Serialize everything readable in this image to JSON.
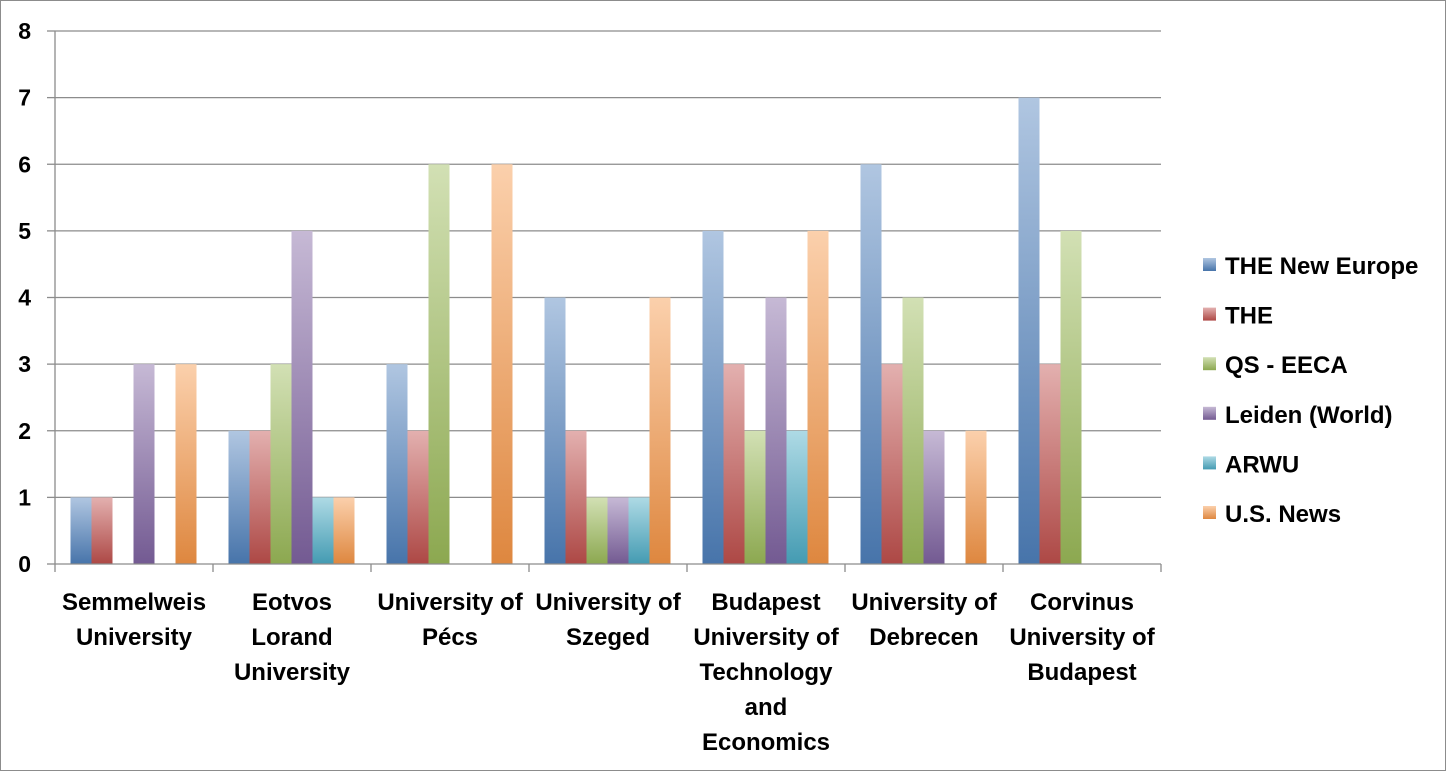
{
  "chart_data": {
    "type": "bar",
    "categories": [
      [
        "Semmelweis",
        "University"
      ],
      [
        "Eotvos",
        "Lorand",
        "University"
      ],
      [
        "University of",
        "Pécs"
      ],
      [
        "University of",
        "Szeged"
      ],
      [
        "Budapest",
        "University of",
        "Technology",
        "and",
        "Economics"
      ],
      [
        "University of",
        "Debrecen"
      ],
      [
        "Corvinus",
        "University of",
        "Budapest"
      ]
    ],
    "series": [
      {
        "name": "THE New Europe",
        "color": "#4f81bd",
        "values": [
          1,
          2,
          3,
          4,
          5,
          6,
          7
        ]
      },
      {
        "name": "THE",
        "color": "#c0504d",
        "values": [
          1,
          2,
          2,
          2,
          3,
          3,
          3
        ]
      },
      {
        "name": "QS - EECA",
        "color": "#9bbb59",
        "values": [
          0,
          3,
          6,
          1,
          2,
          4,
          5
        ]
      },
      {
        "name": "Leiden (World)",
        "color": "#8064a2",
        "values": [
          3,
          5,
          0,
          1,
          4,
          2,
          0
        ]
      },
      {
        "name": "ARWU",
        "color": "#4bacc6",
        "values": [
          0,
          1,
          0,
          1,
          2,
          0,
          0
        ]
      },
      {
        "name": "U.S. News",
        "color": "#f79646",
        "values": [
          3,
          1,
          6,
          4,
          5,
          2,
          0
        ]
      }
    ],
    "yticks": [
      "0",
      "1",
      "2",
      "3",
      "4",
      "5",
      "6",
      "7",
      "8"
    ],
    "ylim": [
      0,
      8
    ],
    "grid": true,
    "legend_position": "right"
  }
}
